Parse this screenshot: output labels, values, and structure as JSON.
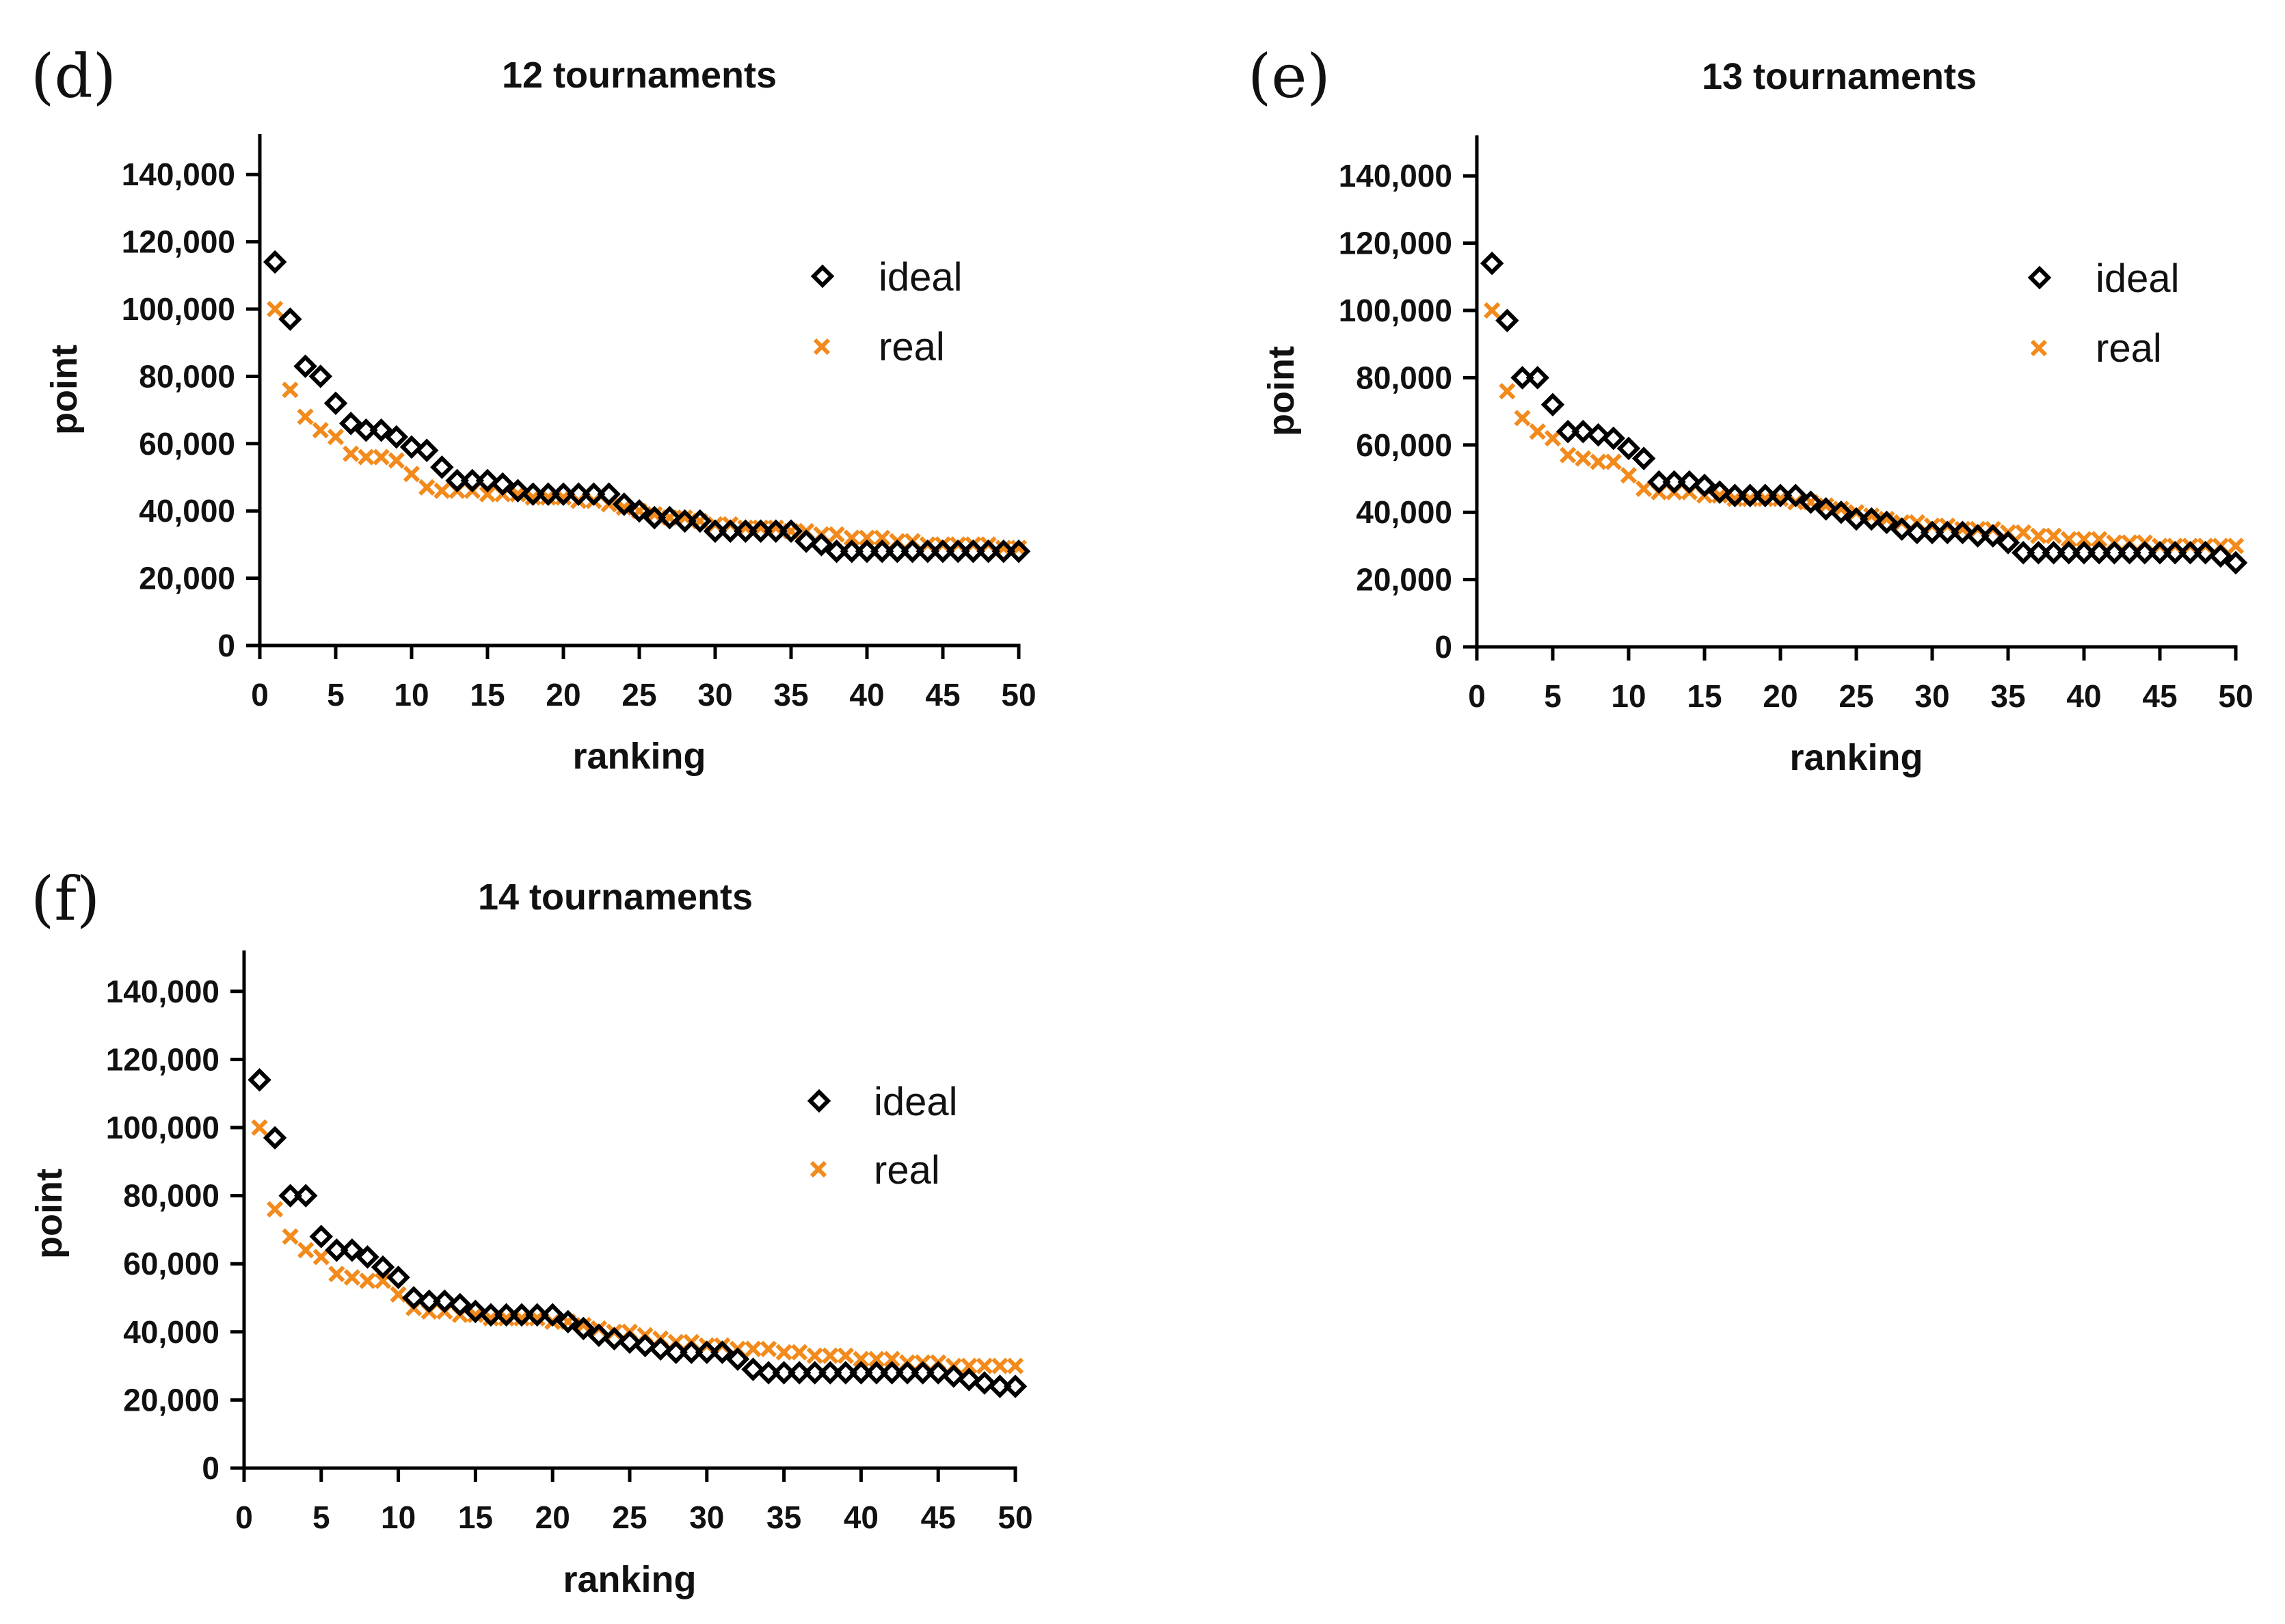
{
  "chart_data": [
    {
      "type": "scatter",
      "panel": "(d)",
      "title": "12 tournaments",
      "xlabel": "ranking",
      "ylabel": "point",
      "xlim": [
        0,
        50
      ],
      "ylim": [
        0,
        150000
      ],
      "x_ticks": [
        0,
        5,
        10,
        15,
        20,
        25,
        30,
        35,
        40,
        45,
        50
      ],
      "x_tick_labels": [
        "0",
        "5",
        "10",
        "15",
        "20",
        "25",
        "30",
        "35",
        "40",
        "45",
        "50"
      ],
      "y_ticks": [
        0,
        20000,
        40000,
        60000,
        80000,
        100000,
        120000,
        140000
      ],
      "y_tick_labels": [
        "0",
        "20,000",
        "40,000",
        "60,000",
        "80,000",
        "100,000",
        "120,000",
        "140,000"
      ],
      "legend_position": "top-right",
      "x": [
        1,
        2,
        3,
        4,
        5,
        6,
        7,
        8,
        9,
        10,
        11,
        12,
        13,
        14,
        15,
        16,
        17,
        18,
        19,
        20,
        21,
        22,
        23,
        24,
        25,
        26,
        27,
        28,
        29,
        30,
        31,
        32,
        33,
        34,
        35,
        36,
        37,
        38,
        39,
        40,
        41,
        42,
        43,
        44,
        45,
        46,
        47,
        48,
        49,
        50
      ],
      "series": [
        {
          "name": "ideal",
          "marker": "diamond",
          "color": "#000000",
          "values": [
            114000,
            97000,
            83000,
            80000,
            72000,
            66000,
            64000,
            64000,
            62000,
            59000,
            58000,
            53000,
            49000,
            49000,
            49000,
            48000,
            46000,
            45000,
            45000,
            45000,
            45000,
            45000,
            45000,
            42000,
            40000,
            38000,
            38000,
            37000,
            37000,
            34000,
            34000,
            34000,
            34000,
            34000,
            34000,
            31000,
            30000,
            28000,
            28000,
            28000,
            28000,
            28000,
            28000,
            28000,
            28000,
            28000,
            28000,
            28000,
            28000,
            28000
          ]
        },
        {
          "name": "real",
          "marker": "x",
          "color": "#f28a1c",
          "values": [
            100000,
            76000,
            68000,
            64000,
            62000,
            57000,
            56000,
            56000,
            55000,
            51000,
            47000,
            46000,
            46000,
            46000,
            45000,
            45000,
            45000,
            44000,
            44000,
            44000,
            43000,
            43000,
            42000,
            41000,
            40000,
            39000,
            38000,
            38000,
            37000,
            36000,
            36000,
            35000,
            35000,
            35000,
            34000,
            34000,
            33000,
            33000,
            32000,
            32000,
            32000,
            31000,
            31000,
            30000,
            30000,
            30000,
            30000,
            30000,
            29000,
            29000
          ]
        }
      ]
    },
    {
      "type": "scatter",
      "panel": "(e)",
      "title": "13 tournaments",
      "xlabel": "ranking",
      "ylabel": "point",
      "xlim": [
        0,
        50
      ],
      "ylim": [
        0,
        150000
      ],
      "x_ticks": [
        0,
        5,
        10,
        15,
        20,
        25,
        30,
        35,
        40,
        45,
        50
      ],
      "x_tick_labels": [
        "0",
        "5",
        "10",
        "15",
        "20",
        "25",
        "30",
        "35",
        "40",
        "45",
        "50"
      ],
      "y_ticks": [
        0,
        20000,
        40000,
        60000,
        80000,
        100000,
        120000,
        140000
      ],
      "y_tick_labels": [
        "0",
        "20,000",
        "40,000",
        "60,000",
        "80,000",
        "100,000",
        "120,000",
        "140,000"
      ],
      "legend_position": "top-right",
      "x": [
        1,
        2,
        3,
        4,
        5,
        6,
        7,
        8,
        9,
        10,
        11,
        12,
        13,
        14,
        15,
        16,
        17,
        18,
        19,
        20,
        21,
        22,
        23,
        24,
        25,
        26,
        27,
        28,
        29,
        30,
        31,
        32,
        33,
        34,
        35,
        36,
        37,
        38,
        39,
        40,
        41,
        42,
        43,
        44,
        45,
        46,
        47,
        48,
        49,
        50
      ],
      "series": [
        {
          "name": "ideal",
          "marker": "diamond",
          "color": "#000000",
          "values": [
            114000,
            97000,
            80000,
            80000,
            72000,
            64000,
            64000,
            63000,
            62000,
            59000,
            56000,
            49000,
            49000,
            49000,
            48000,
            46000,
            45000,
            45000,
            45000,
            45000,
            45000,
            43000,
            41000,
            40000,
            38000,
            38000,
            37000,
            35000,
            34000,
            34000,
            34000,
            34000,
            33000,
            33000,
            31000,
            28000,
            28000,
            28000,
            28000,
            28000,
            28000,
            28000,
            28000,
            28000,
            28000,
            28000,
            28000,
            28000,
            27000,
            25000
          ]
        },
        {
          "name": "real",
          "marker": "x",
          "color": "#f28a1c",
          "values": [
            100000,
            76000,
            68000,
            64000,
            62000,
            57000,
            56000,
            55000,
            55000,
            51000,
            47000,
            46000,
            46000,
            46000,
            45000,
            45000,
            44000,
            44000,
            44000,
            44000,
            43000,
            43000,
            42000,
            41000,
            40000,
            39000,
            38000,
            37000,
            37000,
            36000,
            36000,
            35000,
            35000,
            35000,
            34000,
            34000,
            33000,
            33000,
            32000,
            32000,
            32000,
            31000,
            31000,
            31000,
            30000,
            30000,
            30000,
            30000,
            30000,
            30000
          ]
        }
      ]
    },
    {
      "type": "scatter",
      "panel": "(f)",
      "title": "14 tournaments",
      "xlabel": "ranking",
      "ylabel": "point",
      "xlim": [
        0,
        50
      ],
      "ylim": [
        0,
        150000
      ],
      "x_ticks": [
        0,
        5,
        10,
        15,
        20,
        25,
        30,
        35,
        40,
        45,
        50
      ],
      "x_tick_labels": [
        "0",
        "5",
        "10",
        "15",
        "20",
        "25",
        "30",
        "35",
        "40",
        "45",
        "50"
      ],
      "y_ticks": [
        0,
        20000,
        40000,
        60000,
        80000,
        100000,
        120000,
        140000
      ],
      "y_tick_labels": [
        "0",
        "20,000",
        "40,000",
        "60,000",
        "80,000",
        "100,000",
        "120,000",
        "140,000"
      ],
      "legend_position": "top-right",
      "x": [
        1,
        2,
        3,
        4,
        5,
        6,
        7,
        8,
        9,
        10,
        11,
        12,
        13,
        14,
        15,
        16,
        17,
        18,
        19,
        20,
        21,
        22,
        23,
        24,
        25,
        26,
        27,
        28,
        29,
        30,
        31,
        32,
        33,
        34,
        35,
        36,
        37,
        38,
        39,
        40,
        41,
        42,
        43,
        44,
        45,
        46,
        47,
        48,
        49,
        50
      ],
      "series": [
        {
          "name": "ideal",
          "marker": "diamond",
          "color": "#000000",
          "values": [
            114000,
            97000,
            80000,
            80000,
            68000,
            64000,
            64000,
            62000,
            59000,
            56000,
            50000,
            49000,
            49000,
            48000,
            46000,
            45000,
            45000,
            45000,
            45000,
            45000,
            43000,
            41000,
            39000,
            38000,
            37000,
            36000,
            35000,
            34000,
            34000,
            34000,
            34000,
            32000,
            29000,
            28000,
            28000,
            28000,
            28000,
            28000,
            28000,
            28000,
            28000,
            28000,
            28000,
            28000,
            28000,
            27000,
            26000,
            25000,
            24000,
            24000
          ]
        },
        {
          "name": "real",
          "marker": "x",
          "color": "#f28a1c",
          "values": [
            100000,
            76000,
            68000,
            64000,
            62000,
            57000,
            56000,
            55000,
            55000,
            51000,
            47000,
            46000,
            46000,
            45000,
            45000,
            44000,
            44000,
            44000,
            44000,
            43000,
            43000,
            42000,
            41000,
            40000,
            40000,
            39000,
            38000,
            37000,
            37000,
            36000,
            36000,
            35000,
            35000,
            35000,
            34000,
            34000,
            33000,
            33000,
            33000,
            32000,
            32000,
            32000,
            31000,
            31000,
            31000,
            30000,
            30000,
            30000,
            30000,
            30000
          ]
        }
      ]
    }
  ]
}
